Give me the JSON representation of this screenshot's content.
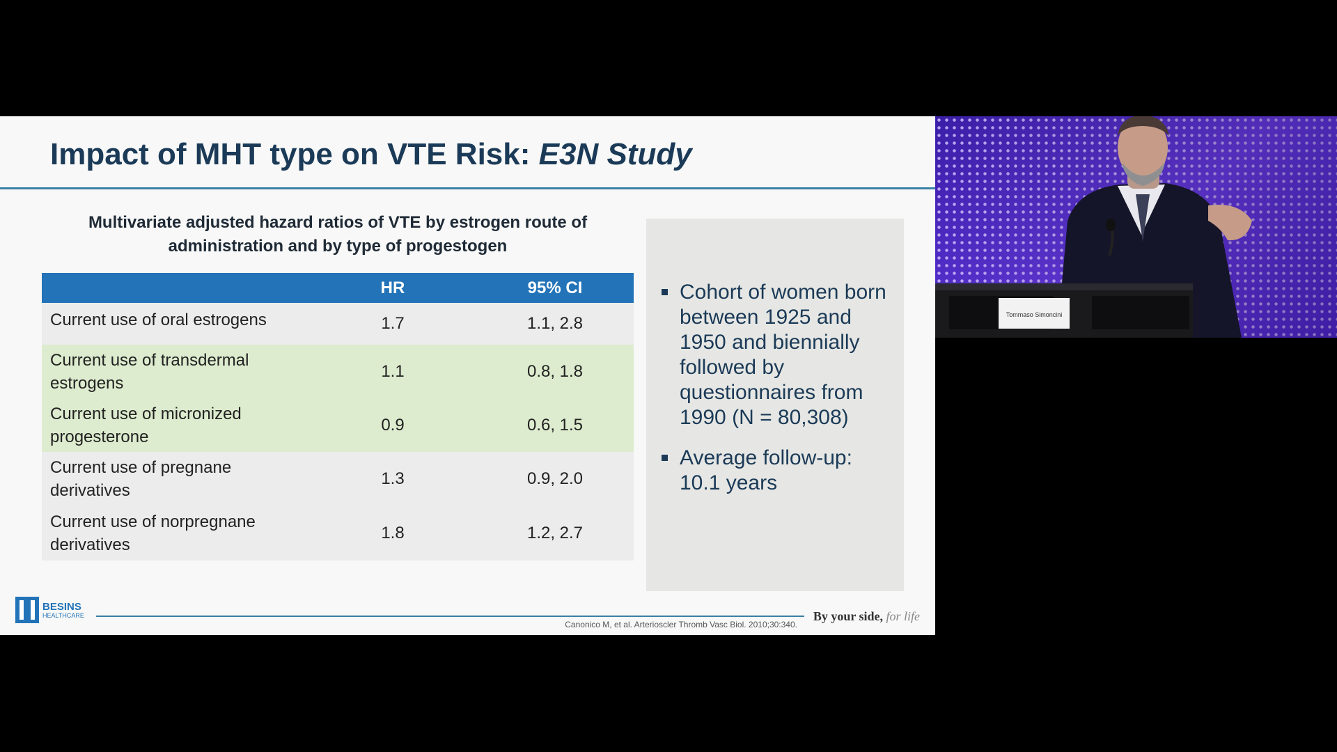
{
  "slide": {
    "title_main": "Impact of MHT type on VTE Risk: ",
    "title_italic": "E3N Study",
    "table_caption": "Multivariate adjusted hazard ratios of VTE by estrogen route of administration and by type of progestogen",
    "table": {
      "headers": [
        "",
        "HR",
        "95% CI"
      ],
      "rows": [
        {
          "label": "Current use of oral estrogens",
          "hr": "1.7",
          "ci": "1.1, 2.8",
          "highlight": false
        },
        {
          "label": "Current use of transdermal estrogens",
          "hr": "1.1",
          "ci": "0.8, 1.8",
          "highlight": true
        },
        {
          "label": "Current use of micronized progesterone",
          "hr": "0.9",
          "ci": "0.6, 1.5",
          "highlight": true
        },
        {
          "label": "Current use of pregnane derivatives",
          "hr": "1.3",
          "ci": "0.9, 2.0",
          "highlight": false
        },
        {
          "label": "Current use of norpregnane derivatives",
          "hr": "1.8",
          "ci": "1.2, 2.7",
          "highlight": false
        }
      ]
    },
    "bullets": [
      "Cohort of women born between 1925 and 1950 and biennially followed by questionnaires from 1990 (N = 80,308)",
      "Average follow-up: 10.1 years"
    ],
    "logo": {
      "name": "BESINS",
      "sub": "HEALTHCARE"
    },
    "citation": "Canonico M, et al. Arterioscler Thromb Vasc Biol. 2010;30:340.",
    "tagline_main": "By your side, ",
    "tagline_script": "for life"
  },
  "video": {
    "nameplate": "Tommaso Simoncini"
  },
  "colors": {
    "title": "#1b3a57",
    "table_header": "#2273b8",
    "row_highlight": "#ddecce",
    "row_plain": "#ececec",
    "info_box": "#e6e7e4",
    "stage_backdrop": "#4a2cc4"
  }
}
